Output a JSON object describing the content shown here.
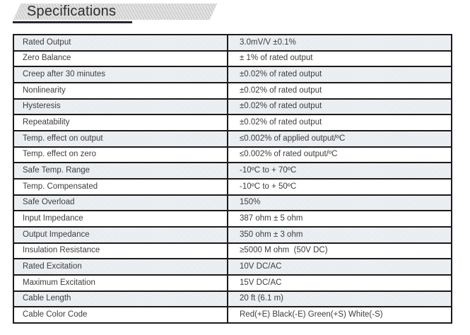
{
  "header": {
    "title": "Specifications"
  },
  "table": {
    "rows": [
      {
        "label": "Rated Output",
        "value": "3.0mV/V ±0.1%"
      },
      {
        "label": "Zero Balance",
        "value": "± 1% of rated output"
      },
      {
        "label": "Creep after 30 minutes",
        "value": "±0.02% of rated output"
      },
      {
        "label": "Nonlinearity",
        "value": "±0.02% of rated output"
      },
      {
        "label": "Hysteresis",
        "value": "±0.02% of rated output"
      },
      {
        "label": "Repeatability",
        "value": "±0.02% of rated output"
      },
      {
        "label": "Temp. effect on output",
        "value": "≤0.002% of applied output/ºC"
      },
      {
        "label": "Temp. effect on zero",
        "value": "≤0.002% of rated output/ºC"
      },
      {
        "label": "Safe Temp. Range",
        "value": "-10ºC to + 70ºC"
      },
      {
        "label": "Temp. Compensated",
        "value": "-10ºC to + 50ºC"
      },
      {
        "label": "Safe Overload",
        "value": "150%"
      },
      {
        "label": "Input Impedance",
        "value": "387 ohm ± 5 ohm"
      },
      {
        "label": "Output Impedance",
        "value": "350 ohm ± 3 ohm"
      },
      {
        "label": "Insulation Resistance",
        "value": "≥5000 M ohm  (50V DC)"
      },
      {
        "label": "Rated Excitation",
        "value": "10V DC/AC"
      },
      {
        "label": "Maximum Excitation",
        "value": "15V DC/AC"
      },
      {
        "label": "Cable Length",
        "value": "20 ft (6.1 m)"
      },
      {
        "label": "Cable Color Code",
        "value": "Red(+E) Black(-E) Green(+S) White(-S)"
      }
    ]
  },
  "colors": {
    "banner_fill": "#d4d4d4",
    "underline": "#23272e",
    "row_shaded": "#e9edf1",
    "border": "#1b1b1b",
    "text": "#3d3d3d"
  }
}
